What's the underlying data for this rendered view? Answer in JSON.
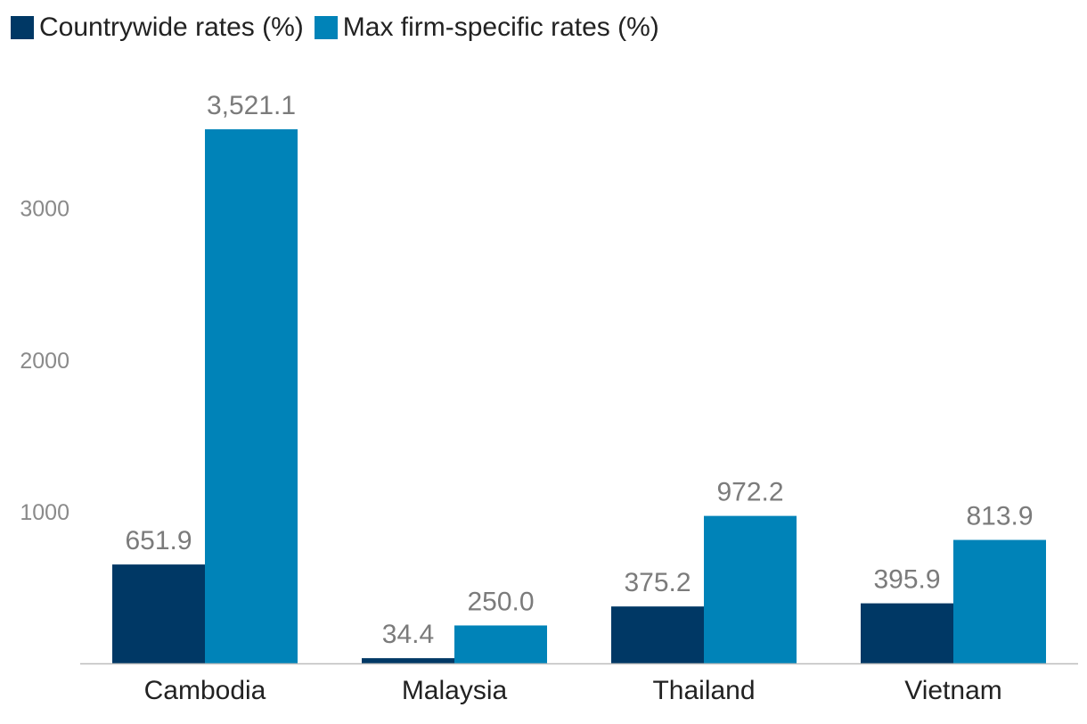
{
  "chart_data": {
    "type": "bar",
    "title": "",
    "xlabel": "",
    "ylabel": "",
    "categories": [
      "Cambodia",
      "Malaysia",
      "Thailand",
      "Vietnam"
    ],
    "series": [
      {
        "name": "Countrywide rates (%)",
        "color": "#003865",
        "values": [
          651.9,
          34.4,
          375.2,
          395.9
        ],
        "labels": [
          "651.9",
          "34.4",
          "375.2",
          "395.9"
        ]
      },
      {
        "name": "Max firm-specific rates (%)",
        "color": "#0083b8",
        "values": [
          3521.1,
          250.0,
          972.2,
          813.9
        ],
        "labels": [
          "3,521.1",
          "250.0",
          "972.2",
          "813.9"
        ]
      }
    ],
    "yticks": [
      1000,
      2000,
      3000
    ],
    "ytick_labels": [
      "1000",
      "2000",
      "3000"
    ],
    "ylim": [
      0,
      3521.1
    ],
    "grid": false,
    "legend": "top-left"
  }
}
